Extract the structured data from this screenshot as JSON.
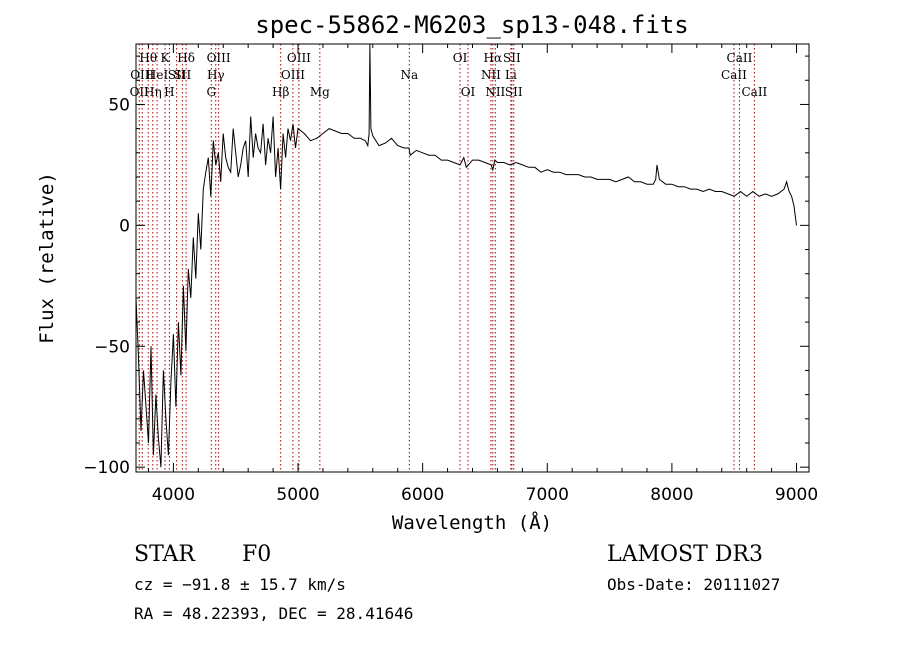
{
  "chart_data": {
    "type": "line",
    "title": "spec-55862-M6203_sp13-048.fits",
    "xlabel": "Wavelength (Å)",
    "ylabel": "Flux (relative)",
    "xlim": [
      3700,
      9100
    ],
    "ylim": [
      -102,
      75
    ],
    "xticks": [
      4000,
      5000,
      6000,
      7000,
      8000,
      9000
    ],
    "yticks": [
      -100,
      -50,
      0,
      50
    ],
    "colors": {
      "spectrum": "#000000",
      "lines": "#aa0000",
      "frame": "#000000"
    },
    "series": [
      {
        "name": "spectrum",
        "x": [
          3700,
          3720,
          3740,
          3760,
          3780,
          3800,
          3820,
          3840,
          3860,
          3880,
          3900,
          3920,
          3940,
          3960,
          3980,
          4000,
          4020,
          4040,
          4060,
          4080,
          4100,
          4120,
          4140,
          4160,
          4180,
          4200,
          4220,
          4240,
          4260,
          4280,
          4300,
          4320,
          4340,
          4360,
          4380,
          4400,
          4420,
          4440,
          4460,
          4480,
          4500,
          4520,
          4540,
          4560,
          4580,
          4600,
          4620,
          4640,
          4660,
          4680,
          4700,
          4720,
          4740,
          4760,
          4780,
          4800,
          4820,
          4840,
          4860,
          4880,
          4900,
          4920,
          4940,
          4960,
          4980,
          5000,
          5050,
          5100,
          5150,
          5200,
          5250,
          5300,
          5350,
          5400,
          5450,
          5500,
          5540,
          5560,
          5570,
          5577,
          5585,
          5600,
          5650,
          5700,
          5750,
          5800,
          5850,
          5890,
          5900,
          5950,
          6000,
          6050,
          6100,
          6150,
          6200,
          6250,
          6300,
          6330,
          6350,
          6400,
          6450,
          6500,
          6550,
          6563,
          6580,
          6600,
          6650,
          6700,
          6750,
          6800,
          6850,
          6900,
          6950,
          7000,
          7050,
          7100,
          7150,
          7200,
          7250,
          7300,
          7350,
          7400,
          7450,
          7500,
          7550,
          7600,
          7650,
          7700,
          7750,
          7800,
          7850,
          7870,
          7880,
          7900,
          7950,
          8000,
          8050,
          8100,
          8150,
          8200,
          8250,
          8300,
          8350,
          8400,
          8450,
          8500,
          8550,
          8600,
          8650,
          8700,
          8750,
          8800,
          8850,
          8900,
          8920,
          8940,
          8960,
          8980,
          9000
        ],
        "y": [
          -30,
          -55,
          -85,
          -60,
          -75,
          -90,
          -50,
          -95,
          -70,
          -88,
          -100,
          -60,
          -80,
          -95,
          -65,
          -45,
          -75,
          -40,
          -62,
          -25,
          -52,
          -18,
          -30,
          -5,
          -22,
          5,
          -10,
          15,
          22,
          28,
          12,
          35,
          25,
          30,
          18,
          38,
          28,
          24,
          22,
          40,
          30,
          20,
          25,
          32,
          35,
          20,
          45,
          28,
          38,
          32,
          30,
          42,
          25,
          36,
          30,
          45,
          20,
          32,
          15,
          38,
          28,
          40,
          35,
          42,
          32,
          40,
          38,
          35,
          36,
          38,
          40,
          39,
          38,
          38,
          36,
          36,
          35,
          33,
          38,
          75,
          40,
          37,
          33,
          34,
          36,
          33,
          32,
          32,
          29,
          31,
          30,
          29,
          29,
          27,
          27,
          26,
          25,
          28,
          24,
          27,
          27,
          26,
          25,
          23,
          27,
          26,
          26,
          25,
          26,
          25,
          24,
          24,
          22,
          23,
          22,
          22,
          21,
          21,
          21,
          20,
          20,
          19,
          19,
          19,
          18,
          19,
          20,
          18,
          18,
          17,
          17,
          19,
          25,
          19,
          17,
          17,
          16,
          16,
          15,
          15,
          14,
          15,
          14,
          14,
          13,
          12,
          14,
          12,
          14,
          12,
          13,
          12,
          13,
          15,
          18,
          14,
          12,
          8,
          0
        ]
      }
    ],
    "emission_lines": [
      {
        "w": 3726,
        "label": "OII",
        "row": 3
      },
      {
        "w": 3750,
        "label": "OIII",
        "row": 2
      },
      {
        "w": 3798,
        "label": "Hθ",
        "row": 1
      },
      {
        "w": 3835,
        "label": "Hη",
        "row": 3
      },
      {
        "w": 3869,
        "label": "HeI",
        "row": 2
      },
      {
        "w": 3933,
        "label": "K",
        "row": 1
      },
      {
        "w": 3968,
        "label": "H",
        "row": 3
      },
      {
        "w": 4026,
        "label": "SII",
        "row": 2
      },
      {
        "w": 4072,
        "label": "SII",
        "row": 2
      },
      {
        "w": 4102,
        "label": "Hδ",
        "row": 1
      },
      {
        "w": 4304,
        "label": "G",
        "row": 3
      },
      {
        "w": 4340,
        "label": "Hγ",
        "row": 2
      },
      {
        "w": 4363,
        "label": "OIII",
        "row": 1
      },
      {
        "w": 4861,
        "label": "Hβ",
        "row": 3
      },
      {
        "w": 4959,
        "label": "OIII",
        "row": 2
      },
      {
        "w": 5007,
        "label": "OIII",
        "row": 1
      },
      {
        "w": 5175,
        "label": "Mg",
        "row": 3
      },
      {
        "w": 5893,
        "label": "Na",
        "row": 2
      },
      {
        "w": 6300,
        "label": "OI",
        "row": 1
      },
      {
        "w": 6364,
        "label": "OI",
        "row": 3
      },
      {
        "w": 6548,
        "label": "NII",
        "row": 2
      },
      {
        "w": 6563,
        "label": "Hα",
        "row": 1
      },
      {
        "w": 6583,
        "label": "NII",
        "row": 3
      },
      {
        "w": 6708,
        "label": "Li",
        "row": 2
      },
      {
        "w": 6716,
        "label": "SII",
        "row": 1
      },
      {
        "w": 6731,
        "label": "SII",
        "row": 3
      },
      {
        "w": 8498,
        "label": "CaII",
        "row": 2
      },
      {
        "w": 8542,
        "label": "CaII",
        "row": 1
      },
      {
        "w": 8662,
        "label": "CaII",
        "row": 3
      }
    ]
  },
  "info": {
    "object_class": "STAR",
    "subclass": "F0",
    "survey": "LAMOST DR3",
    "redshift": "cz = −91.8 ± 15.7 km/s",
    "obs_date": "Obs-Date: 20111027",
    "coords": "RA =  48.22393, DEC =  28.41646"
  }
}
